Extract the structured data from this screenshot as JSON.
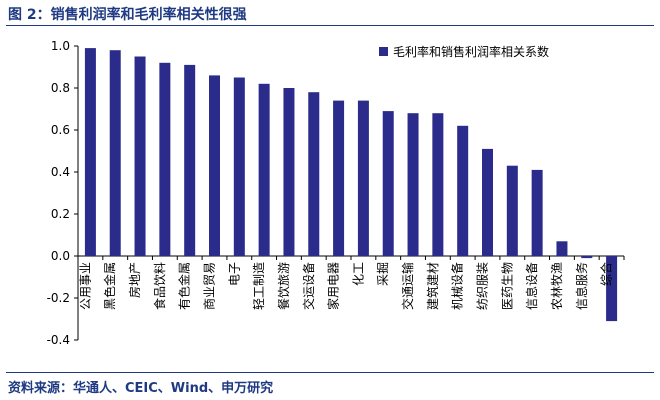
{
  "figure": {
    "title": "图 2：销售利润率和毛利率相关性很强",
    "source": "资料来源：华通人、CEIC、Wind、申万研究"
  },
  "chart_data": {
    "type": "bar",
    "title": "",
    "xlabel": "",
    "ylabel": "",
    "ylim": [
      -0.4,
      1.0
    ],
    "yticks": [
      "1.0",
      "0.8",
      "0.6",
      "0.4",
      "0.2",
      "0.0",
      "-0.2",
      "-0.4"
    ],
    "grid": false,
    "legend_position": "top-right",
    "bar_color": "#2b2b8c",
    "categories": [
      "公用事业",
      "黑色金属",
      "房地产",
      "食品饮料",
      "有色金属",
      "商业贸易",
      "电子",
      "轻工制造",
      "餐饮旅游",
      "交运设备",
      "家用电器",
      "化工",
      "采掘",
      "交通运输",
      "建筑建材",
      "机械设备",
      "纺织服装",
      "医药生物",
      "信息设备",
      "农林牧渔",
      "信息服务",
      "综合"
    ],
    "series": [
      {
        "name": "毛利率和销售利润率相关系数",
        "values": [
          0.99,
          0.98,
          0.95,
          0.92,
          0.91,
          0.86,
          0.85,
          0.82,
          0.8,
          0.78,
          0.74,
          0.74,
          0.69,
          0.68,
          0.68,
          0.62,
          0.51,
          0.43,
          0.41,
          0.07,
          -0.01,
          -0.31
        ]
      }
    ]
  }
}
